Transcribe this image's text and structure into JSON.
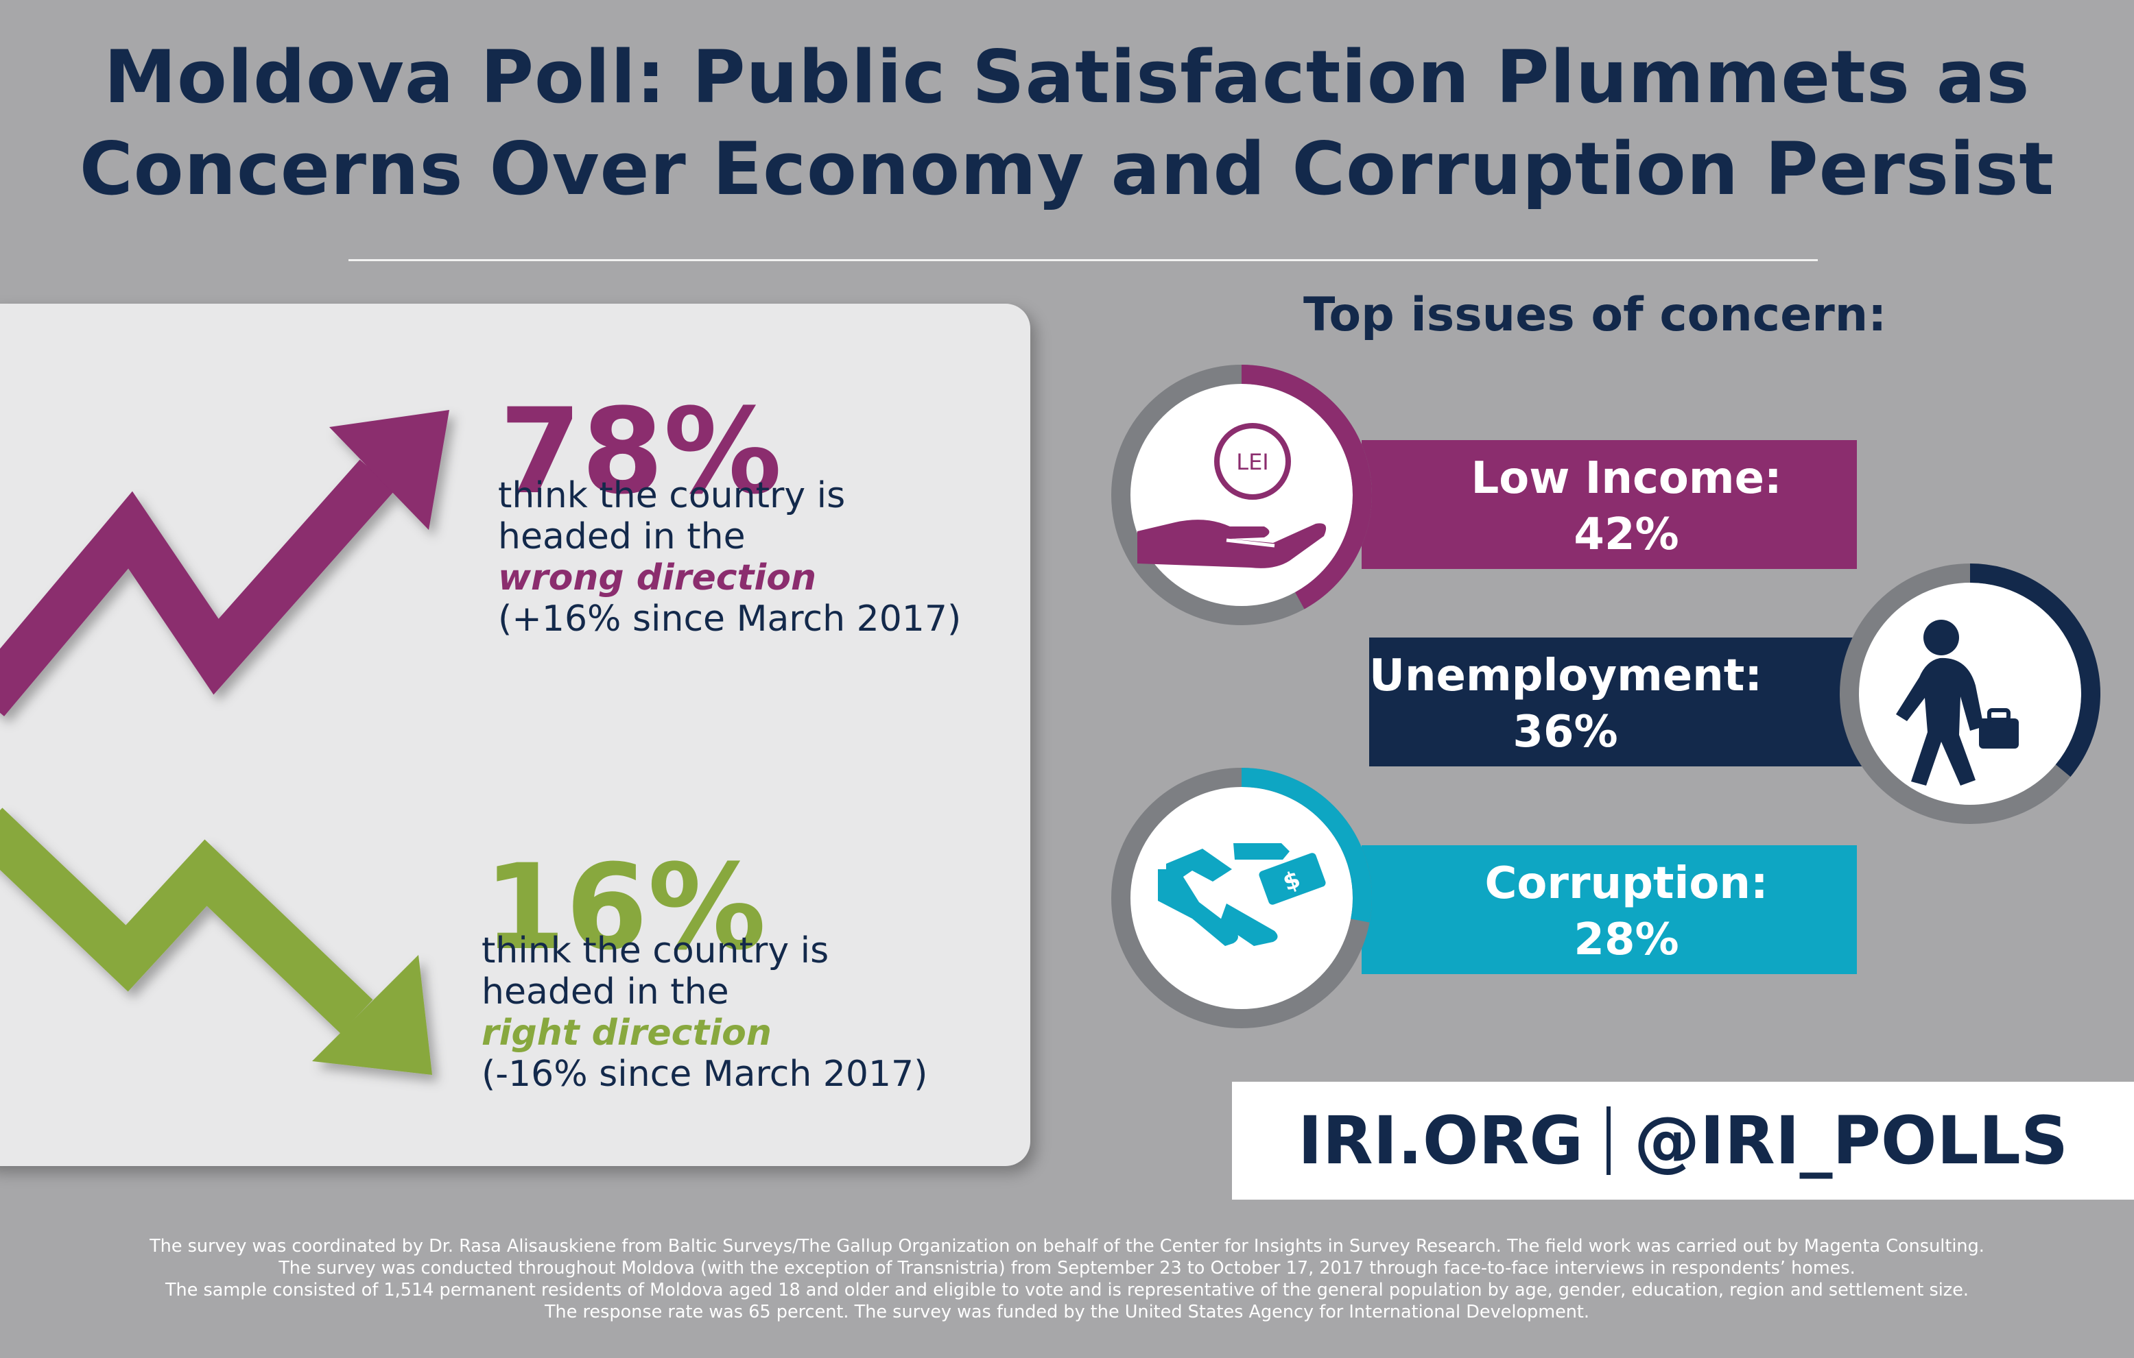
{
  "title": {
    "line1": "Moldova Poll: Public Satisfaction Plummets as",
    "line2": "Concerns Over Economy and Corruption Persist"
  },
  "left": {
    "wrong": {
      "percent": "78%",
      "line1": "think the country is",
      "line2": "headed in the",
      "direction": "wrong direction",
      "change": "(+16% since March 2017)",
      "color": "#8b2d6e"
    },
    "right": {
      "percent": "16%",
      "line1": "think the country is",
      "line2": "headed in the",
      "direction": "right direction",
      "change": "(-16% since March 2017)",
      "color": "#88a83e"
    }
  },
  "issues": {
    "heading": "Top issues of concern:",
    "income": {
      "label": "Low Income:",
      "value": "42%",
      "coin_text": "LEI",
      "icon": "hand-coin-icon",
      "color": "#8b2d6e"
    },
    "unemployment": {
      "label": "Unemployment:",
      "value": "36%",
      "icon": "walking-man-briefcase-icon",
      "color": "#13294b"
    },
    "corruption": {
      "label": "Corruption:",
      "value": "28%",
      "icon": "handshake-money-icon",
      "color": "#0ea6c3"
    }
  },
  "chart_data": [
    {
      "type": "bar",
      "categories": [
        "wrong direction",
        "right direction"
      ],
      "values": [
        78,
        16
      ],
      "changes_since_march_2017": [
        16,
        -16
      ]
    },
    {
      "type": "pie",
      "categories": [
        "Low Income:",
        "Unemployment:",
        "Corruption:"
      ],
      "values": [
        42,
        36,
        28
      ]
    }
  ],
  "brand": {
    "site": "IRI.ORG",
    "handle": "@IRI_POLLS"
  },
  "footnote": [
    "The survey was coordinated by Dr. Rasa Alisauskiene from Baltic Surveys/The Gallup Organization on behalf of the Center for Insights in Survey Research. The field work was carried out by Magenta Consulting.",
    "The survey was conducted throughout Moldova (with the exception of Transnistria) from September 23 to October 17, 2017 through face-to-face interviews in respondents’ homes.",
    "The sample consisted of 1,514 permanent residents of Moldova aged 18 and older and eligible to vote and is representative of the general population by age, gender, education, region and settlement size.",
    "The response rate was 65 percent. The survey was funded by the United States Agency for International Development."
  ]
}
